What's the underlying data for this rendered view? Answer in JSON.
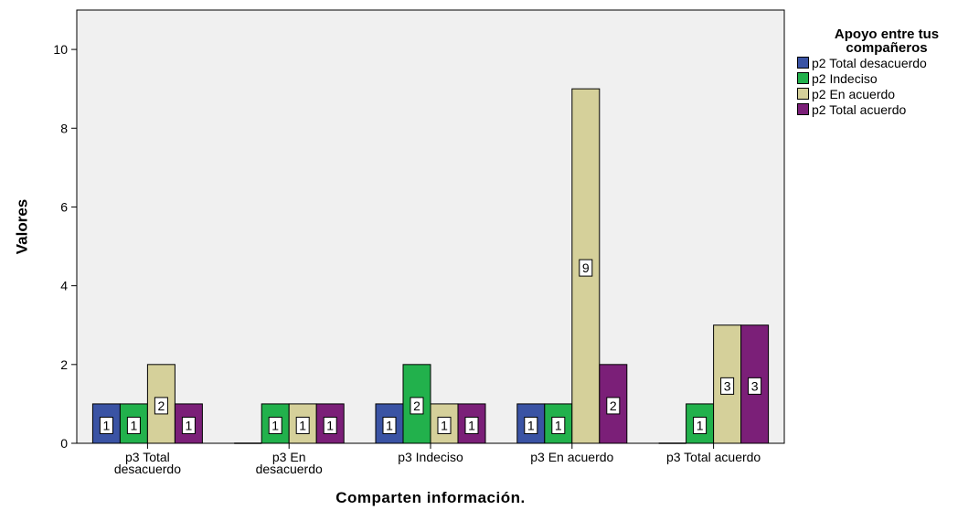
{
  "chart_data": {
    "type": "bar",
    "categories": [
      [
        "p3 Total",
        "desacuerdo"
      ],
      [
        "p3 En",
        "desacuerdo"
      ],
      [
        "p3 Indeciso"
      ],
      [
        "p3 En acuerdo"
      ],
      [
        "p3 Total acuerdo"
      ]
    ],
    "series": [
      {
        "name": "p2 Total desacuerdo",
        "color": "#3a53a4",
        "values": [
          1,
          0,
          1,
          1,
          0
        ]
      },
      {
        "name": "p2 Indeciso",
        "color": "#22b14c",
        "values": [
          1,
          1,
          2,
          1,
          1
        ]
      },
      {
        "name": "p2 En acuerdo",
        "color": "#d5d09a",
        "values": [
          2,
          1,
          1,
          9,
          3
        ]
      },
      {
        "name": "p2 Total acuerdo",
        "color": "#7b1f78",
        "values": [
          1,
          1,
          1,
          2,
          3
        ]
      }
    ],
    "xlabel": "Comparten información.",
    "ylabel": "Valores",
    "ylim": [
      0,
      11
    ],
    "yticks": [
      0,
      2,
      4,
      6,
      8,
      10
    ],
    "legend_title": "Apoyo entre tus compañeros",
    "legend_position": "top-right",
    "plot_background": "#f0f0f0",
    "grid": false
  }
}
